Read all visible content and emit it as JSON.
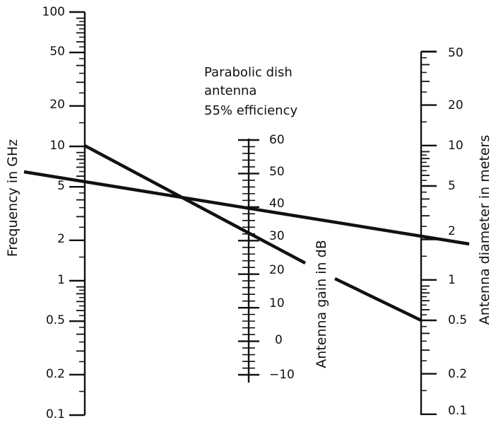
{
  "title_lines": [
    "Parabolic dish",
    "antenna",
    "55% efficiency"
  ],
  "axes": {
    "frequency": {
      "title": "Frequency in GHz",
      "scale": "log",
      "range": [
        0.1,
        100
      ],
      "labels": [
        "100",
        "50",
        "20",
        "10",
        "5",
        "2",
        "1",
        "0.5",
        "0.2",
        "0.1"
      ],
      "label_values": [
        100,
        50,
        20,
        10,
        5,
        2,
        1,
        0.5,
        0.2,
        0.1
      ]
    },
    "gain": {
      "title": "Antenna gain in dB",
      "scale": "linear",
      "range": [
        -10,
        60
      ],
      "labels": [
        "60",
        "50",
        "40",
        "30",
        "20",
        "10",
        "0",
        "−10"
      ],
      "label_values": [
        60,
        50,
        40,
        30,
        20,
        10,
        0,
        -10
      ]
    },
    "diameter": {
      "title": "Antenna diameter in meters",
      "scale": "log",
      "range": [
        0.1,
        50
      ],
      "labels": [
        "50",
        "20",
        "10",
        "5",
        "2",
        "1",
        "0.5",
        "0.2",
        "0.1"
      ],
      "label_values": [
        50,
        20,
        10,
        5,
        2,
        1,
        0.5,
        0.2,
        0.1
      ]
    }
  },
  "examples": [
    {
      "frequency_ghz": 10,
      "diameter_m": 0.5,
      "gain_db": 32
    },
    {
      "frequency_ghz": 5.5,
      "diameter_m": 2,
      "gain_db": 38
    }
  ],
  "colors": {
    "ink": "#111111",
    "background": "#ffffff"
  }
}
